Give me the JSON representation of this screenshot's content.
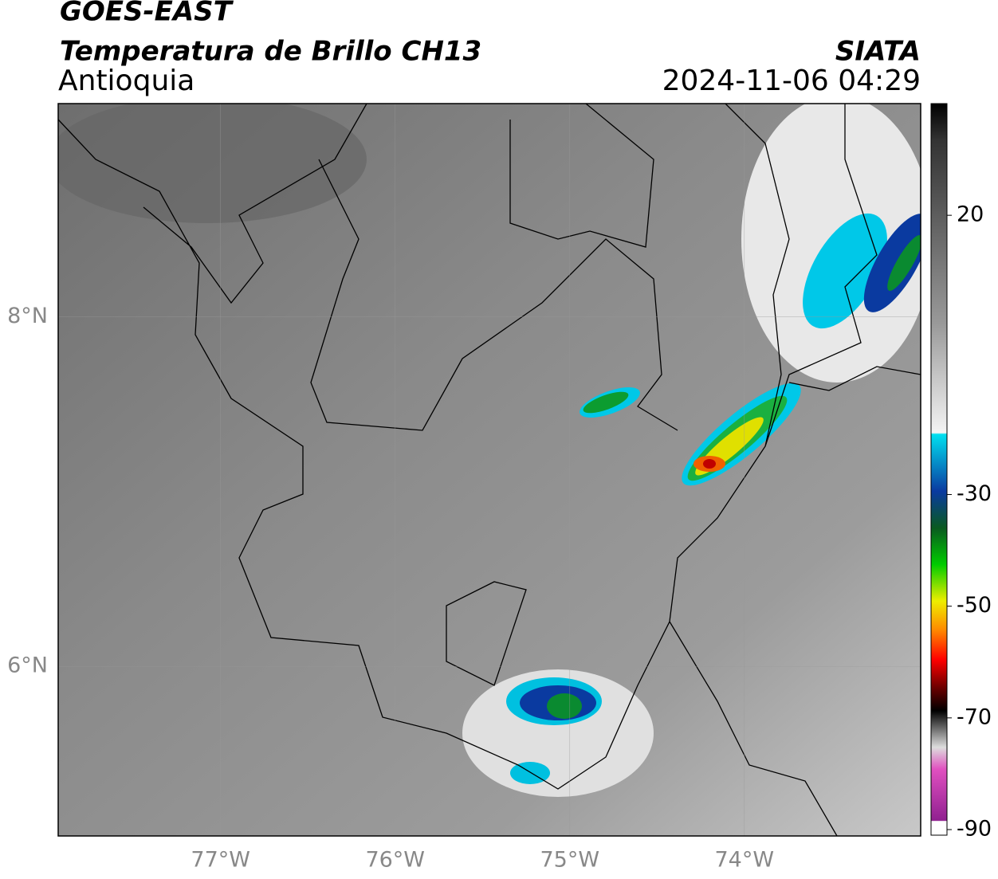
{
  "header": {
    "title": "GOES-EAST",
    "subtitle": "Temperatura de Brillo CH13",
    "region": "Antioquia",
    "source": "SIATA",
    "datetime": "2024-11-06 04:29"
  },
  "map": {
    "xlim": [
      -77.93,
      -72.99
    ],
    "ylim": [
      5.03,
      9.22
    ],
    "xticks": [
      {
        "value": -77,
        "label": "77°W"
      },
      {
        "value": -76,
        "label": "76°W"
      },
      {
        "value": -75,
        "label": "75°W"
      },
      {
        "value": -74,
        "label": "74°W"
      }
    ],
    "yticks": [
      {
        "value": 6,
        "label": "6°N"
      },
      {
        "value": 8,
        "label": "8°N"
      }
    ],
    "grid": true
  },
  "colorbar": {
    "clim": [
      -91,
      40
    ],
    "ticks": [
      20,
      -30,
      -50,
      -70,
      -90
    ]
  }
}
